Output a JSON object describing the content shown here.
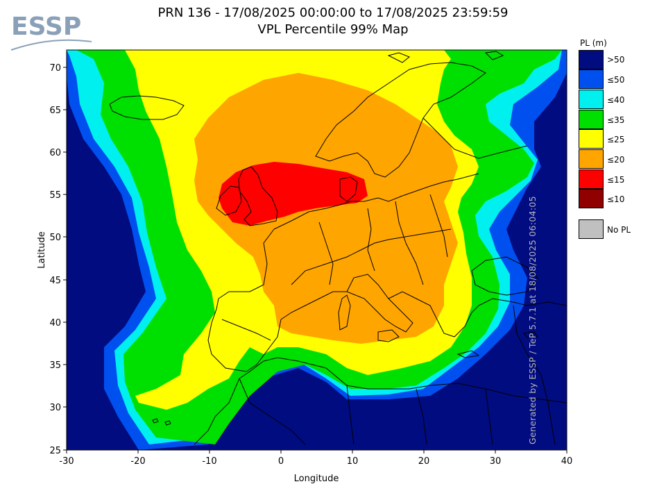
{
  "title": {
    "line1": "PRN 136 - 17/08/2025 00:00:00 to 17/08/2025 23:59:59",
    "line2": "VPL Percentile 99% Map"
  },
  "logo": {
    "text": "ESSP"
  },
  "axes": {
    "xlabel": "Longitude",
    "ylabel": "Latitude",
    "xticks": [
      "-30",
      "-20",
      "-10",
      "0",
      "10",
      "20",
      "30",
      "40"
    ],
    "yticks": [
      "70",
      "65",
      "60",
      "55",
      "50",
      "45",
      "40",
      "35",
      "30",
      "25"
    ],
    "xlim": [
      -30,
      40
    ],
    "ylim": [
      25,
      72
    ]
  },
  "watermark": "Generated by ESSP / TeP 5.7.1 at 18/08/2025 06:04:05",
  "legend": {
    "title": "PL (m)",
    "items": [
      {
        "label": ">50",
        "color": "#000c80"
      },
      {
        "label": "≤50",
        "color": "#0050f0"
      },
      {
        "label": "≤40",
        "color": "#00f0f0"
      },
      {
        "label": "≤35",
        "color": "#00e000"
      },
      {
        "label": "≤25",
        "color": "#ffff00"
      },
      {
        "label": "≤20",
        "color": "#ffa500"
      },
      {
        "label": "≤15",
        "color": "#ff0000"
      },
      {
        "label": "≤10",
        "color": "#900000"
      }
    ],
    "no_pl": {
      "label": "No PL",
      "color": "#c0c0c0"
    }
  }
}
